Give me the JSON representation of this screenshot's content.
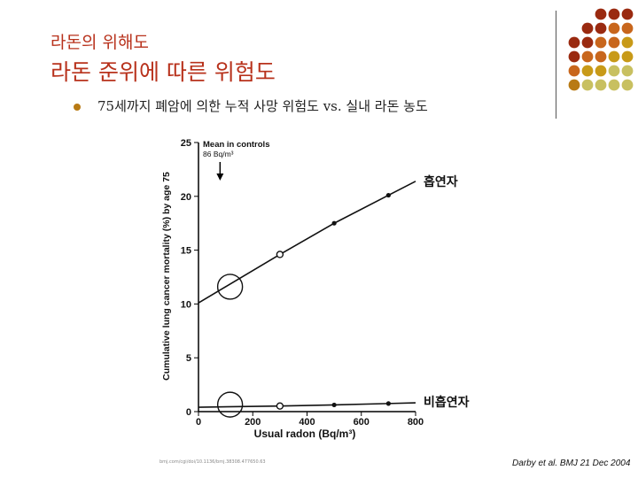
{
  "slide": {
    "subtitle": "라돈의 위해도",
    "title": "라돈 준위에 따른 위험도",
    "bullet": "75세까지 폐암에 의한 누적 사망 위험도 vs. 실내 라돈 농도",
    "citation": "Darby et al. BMJ 21 Dec 2004",
    "footer_small": "bmj.com/cgi/doi/10.1136/bmj.38308.477650.63",
    "accent_colors": [
      "#b8321c",
      "#9a2a10",
      "#c8661c",
      "#c89a18",
      "#c8c060",
      "#b87a14"
    ]
  },
  "chart_data": {
    "type": "line",
    "xlabel": "Usual radon (Bq/m³)",
    "ylabel": "Cumulative lung cancer mortality (%) by age 75",
    "xlim": [
      0,
      800
    ],
    "ylim": [
      0,
      25
    ],
    "x_ticks": [
      "0",
      "200",
      "400",
      "600",
      "800"
    ],
    "y_ticks": [
      "0",
      "5",
      "10",
      "15",
      "20",
      "25"
    ],
    "annotation_line1": "Mean in controls",
    "annotation_line2": "86 Bq/m³",
    "annotation_x": 86,
    "series": [
      {
        "name": "흡연자",
        "x": [
          0,
          300,
          500,
          700,
          800
        ],
        "y": [
          10.1,
          14.6,
          17.5,
          20.1,
          21.4
        ],
        "markers": [
          300,
          500,
          700
        ]
      },
      {
        "name": "비흡연자",
        "x": [
          0,
          300,
          500,
          700,
          800
        ],
        "y": [
          0.41,
          0.52,
          0.62,
          0.75,
          0.82
        ],
        "markers": [
          300,
          500,
          700
        ]
      }
    ],
    "highlight_circles": [
      {
        "x": 100,
        "y": 11.6
      },
      {
        "x": 100,
        "y": 0.4
      }
    ]
  }
}
